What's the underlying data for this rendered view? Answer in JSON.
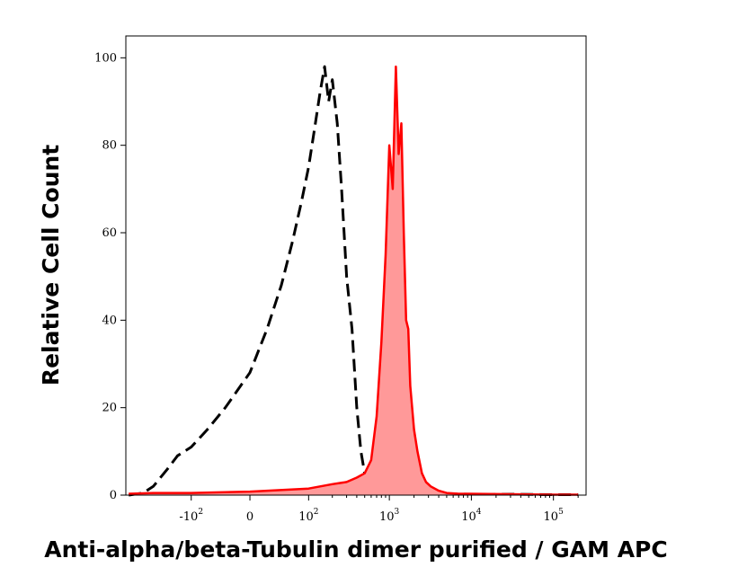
{
  "chart_data": {
    "type": "area",
    "title": "",
    "xlabel": "Anti-alpha/beta-Tubulin dimer purified / GAM APC",
    "ylabel": "Relative Cell Count",
    "x_scale": "biexponential",
    "ylim": [
      0,
      105
    ],
    "grid": false,
    "legend": "none",
    "x_ticks": [
      {
        "value": -100,
        "base": "-10",
        "exp": "2"
      },
      {
        "value": 0,
        "base": "0",
        "exp": ""
      },
      {
        "value": 100,
        "base": "10",
        "exp": "2"
      },
      {
        "value": 1000,
        "base": "10",
        "exp": "3"
      },
      {
        "value": 10000,
        "base": "10",
        "exp": "4"
      },
      {
        "value": 100000,
        "base": "10",
        "exp": "5"
      }
    ],
    "y_ticks": [
      0,
      20,
      40,
      60,
      80,
      100
    ],
    "series": [
      {
        "style": "dashed",
        "color": "#000000",
        "fill": "none",
        "x": [
          -600,
          -400,
          -300,
          -200,
          -150,
          -100,
          -60,
          -30,
          0,
          20,
          40,
          60,
          80,
          100,
          120,
          140,
          160,
          180,
          200,
          230,
          260,
          300,
          350,
          400,
          450,
          500,
          560,
          620,
          700,
          800,
          1000,
          1500,
          3000,
          10000,
          30000,
          100000,
          200000
        ],
        "y": [
          0,
          0.5,
          2,
          6,
          9,
          11,
          15,
          20,
          28,
          38,
          48,
          58,
          67,
          75,
          84,
          92,
          98,
          90,
          95,
          85,
          70,
          50,
          38,
          20,
          10,
          5,
          2,
          1,
          0.5,
          0.5,
          0.5,
          0.5,
          0.3,
          0.2,
          0.2,
          0.1,
          0.1
        ]
      },
      {
        "style": "solid",
        "color": "#ff0000",
        "fill": "#ff9999",
        "x": [
          -600,
          -300,
          -100,
          0,
          100,
          200,
          300,
          400,
          500,
          600,
          700,
          800,
          900,
          1000,
          1100,
          1200,
          1300,
          1400,
          1500,
          1600,
          1700,
          1800,
          2000,
          2200,
          2500,
          2800,
          3200,
          4000,
          5000,
          7000,
          10000,
          30000,
          100000,
          200000
        ],
        "y": [
          0.3,
          0.5,
          0.5,
          0.8,
          1.5,
          2.5,
          3,
          4,
          5,
          8,
          18,
          35,
          55,
          80,
          70,
          98,
          78,
          85,
          60,
          40,
          38,
          25,
          15,
          10,
          5,
          3,
          2,
          1,
          0.5,
          0.3,
          0.3,
          0.2,
          0.1,
          0.1
        ]
      }
    ]
  }
}
